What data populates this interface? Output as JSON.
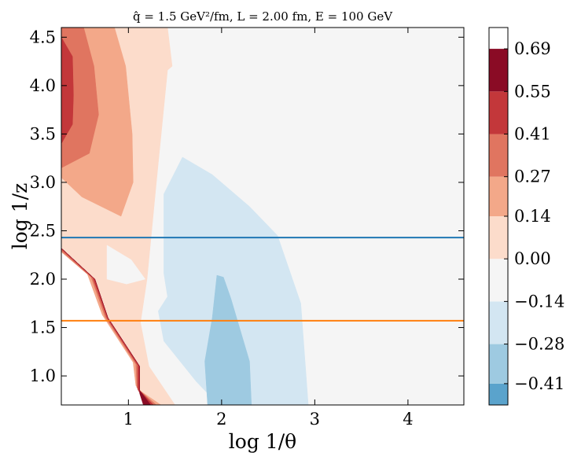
{
  "chart_data": {
    "type": "heatmap",
    "title": "q̂ = 1.5 GeV²/fm,  L = 2.00 fm,  E = 100 GeV",
    "xlabel": "log 1/θ",
    "ylabel": "log 1/z",
    "xlim": [
      0.28,
      4.6
    ],
    "ylim": [
      0.7,
      4.6
    ],
    "xticks": [
      1,
      2,
      3,
      4
    ],
    "yticks": [
      1.0,
      1.5,
      2.0,
      2.5,
      3.0,
      3.5,
      4.0,
      4.5
    ],
    "xtick_labels": [
      "1",
      "2",
      "3",
      "4"
    ],
    "ytick_labels": [
      "1.0",
      "1.5",
      "2.0",
      "2.5",
      "3.0",
      "3.5",
      "4.0",
      "4.5"
    ],
    "colorbar": {
      "levels": [
        -0.48,
        -0.41,
        -0.28,
        -0.14,
        0.0,
        0.14,
        0.27,
        0.41,
        0.55,
        0.69,
        0.76
      ],
      "tick_values": [
        -0.41,
        -0.28,
        -0.14,
        0.0,
        0.14,
        0.27,
        0.41,
        0.55,
        0.69
      ],
      "tick_labels": [
        "−0.41",
        "−0.28",
        "−0.14",
        "0.00",
        "0.14",
        "0.27",
        "0.41",
        "0.55",
        "0.69"
      ],
      "colors": [
        "#5aa3cc",
        "#9ecae1",
        "#d3e6f2",
        "#f5f5f5",
        "#fcdccb",
        "#f3a889",
        "#e07560",
        "#c3373a",
        "#8a0b25"
      ]
    },
    "background_color": "#f5f5f5",
    "regions": [
      {
        "name": "no-data-lower-left",
        "level": "none",
        "color": "#ffffff",
        "points": [
          [
            0.28,
            0.7
          ],
          [
            0.28,
            2.32
          ],
          [
            0.64,
            2.0
          ],
          [
            0.78,
            1.6
          ],
          [
            1.12,
            1.1
          ],
          [
            1.12,
            0.85
          ],
          [
            1.35,
            0.7
          ]
        ]
      },
      {
        "name": "positive-0.00-0.14",
        "level": 0,
        "color": "#fcdccb",
        "points": [
          [
            0.28,
            4.6
          ],
          [
            1.42,
            4.6
          ],
          [
            1.47,
            4.2
          ],
          [
            1.42,
            4.16
          ],
          [
            1.3,
            3.0
          ],
          [
            1.2,
            2.0
          ],
          [
            1.13,
            1.55
          ],
          [
            1.22,
            1.1
          ],
          [
            1.5,
            0.7
          ],
          [
            1.35,
            0.7
          ],
          [
            1.12,
            0.85
          ],
          [
            1.12,
            1.1
          ],
          [
            0.78,
            1.6
          ],
          [
            0.64,
            2.0
          ],
          [
            0.28,
            2.32
          ]
        ]
      },
      {
        "name": "near-zero-hole",
        "level": "none",
        "color": "#f5f5f5",
        "points": [
          [
            0.77,
            2.35
          ],
          [
            1.03,
            2.2
          ],
          [
            1.18,
            2.0
          ],
          [
            0.98,
            1.95
          ],
          [
            0.77,
            2.0
          ]
        ]
      },
      {
        "name": "positive-0.14-0.27",
        "level": 1,
        "color": "#f3a889",
        "points": [
          [
            0.28,
            4.6
          ],
          [
            0.85,
            4.6
          ],
          [
            0.97,
            4.2
          ],
          [
            1.04,
            3.5
          ],
          [
            1.05,
            3.0
          ],
          [
            0.92,
            2.65
          ],
          [
            0.5,
            2.85
          ],
          [
            0.28,
            3.05
          ]
        ]
      },
      {
        "name": "positive-0.27-0.41",
        "level": 2,
        "color": "#e07560",
        "points": [
          [
            0.28,
            4.6
          ],
          [
            0.52,
            4.6
          ],
          [
            0.63,
            4.2
          ],
          [
            0.68,
            3.7
          ],
          [
            0.58,
            3.3
          ],
          [
            0.28,
            3.15
          ]
        ]
      },
      {
        "name": "positive-0.41-0.55",
        "level": 3,
        "color": "#c3373a",
        "points": [
          [
            0.28,
            4.5
          ],
          [
            0.4,
            4.3
          ],
          [
            0.41,
            3.9
          ],
          [
            0.4,
            3.6
          ],
          [
            0.28,
            3.4
          ]
        ]
      },
      {
        "name": "edge-band-0.14",
        "level": 1,
        "color": "#f3a889",
        "points": [
          [
            0.28,
            2.32
          ],
          [
            0.64,
            2.0
          ],
          [
            0.78,
            1.6
          ],
          [
            1.12,
            1.1
          ],
          [
            1.12,
            0.85
          ],
          [
            1.35,
            0.7
          ],
          [
            1.27,
            0.7
          ],
          [
            1.08,
            0.9
          ],
          [
            1.05,
            1.14
          ],
          [
            0.72,
            1.63
          ],
          [
            0.56,
            2.05
          ],
          [
            0.28,
            2.28
          ]
        ]
      },
      {
        "name": "edge-band-0.27",
        "level": 2,
        "color": "#e07560",
        "points": [
          [
            0.28,
            2.32
          ],
          [
            0.64,
            2.0
          ],
          [
            0.78,
            1.6
          ],
          [
            1.12,
            1.1
          ],
          [
            1.12,
            0.85
          ],
          [
            1.3,
            0.7
          ],
          [
            1.24,
            0.7
          ],
          [
            1.09,
            0.88
          ],
          [
            1.08,
            1.12
          ],
          [
            0.75,
            1.61
          ],
          [
            0.6,
            2.02
          ],
          [
            0.28,
            2.29
          ]
        ]
      },
      {
        "name": "edge-band-0.55",
        "level": 4,
        "color": "#c3373a",
        "points": [
          [
            0.28,
            2.32
          ],
          [
            0.64,
            2.0
          ],
          [
            0.78,
            1.6
          ],
          [
            1.12,
            1.1
          ],
          [
            1.12,
            0.85
          ],
          [
            1.27,
            0.7
          ],
          [
            1.2,
            0.7
          ],
          [
            1.1,
            0.86
          ],
          [
            1.1,
            1.11
          ],
          [
            0.77,
            1.6
          ],
          [
            0.62,
            2.01
          ],
          [
            0.28,
            2.31
          ]
        ]
      },
      {
        "name": "edge-band-0.69",
        "level": 5,
        "color": "#8a0b25",
        "points": [
          [
            0.28,
            2.32
          ],
          [
            0.64,
            2.0
          ],
          [
            0.78,
            1.6
          ],
          [
            1.12,
            1.1
          ],
          [
            1.12,
            0.85
          ],
          [
            1.24,
            0.7
          ],
          [
            1.16,
            0.7
          ],
          [
            1.12,
            0.82
          ],
          [
            1.12,
            1.1
          ],
          [
            0.78,
            1.6
          ],
          [
            0.64,
            2.0
          ],
          [
            0.28,
            2.32
          ]
        ]
      },
      {
        "name": "negative-0.00-neg0.14",
        "level": -1,
        "color": "#d3e6f2",
        "points": [
          [
            1.38,
            2.88
          ],
          [
            1.58,
            3.26
          ],
          [
            1.9,
            3.08
          ],
          [
            2.3,
            2.75
          ],
          [
            2.6,
            2.45
          ],
          [
            2.85,
            1.75
          ],
          [
            2.93,
            0.7
          ],
          [
            1.97,
            0.7
          ],
          [
            1.73,
            0.94
          ],
          [
            1.38,
            1.36
          ],
          [
            1.32,
            1.67
          ],
          [
            1.42,
            1.82
          ],
          [
            1.38,
            2.06
          ]
        ]
      },
      {
        "name": "negative-neg0.14-neg0.28",
        "level": -2,
        "color": "#9ecae1",
        "points": [
          [
            1.95,
            2.04
          ],
          [
            2.02,
            2.02
          ],
          [
            2.1,
            1.8
          ],
          [
            2.3,
            1.15
          ],
          [
            2.32,
            0.7
          ],
          [
            1.85,
            0.7
          ],
          [
            1.82,
            1.15
          ],
          [
            1.9,
            1.6
          ]
        ]
      }
    ],
    "horizontal_lines": [
      {
        "name": "blue-line",
        "y": 2.43,
        "color": "#1f77b4"
      },
      {
        "name": "orange-line",
        "y": 1.57,
        "color": "#ff7f0e"
      }
    ]
  }
}
